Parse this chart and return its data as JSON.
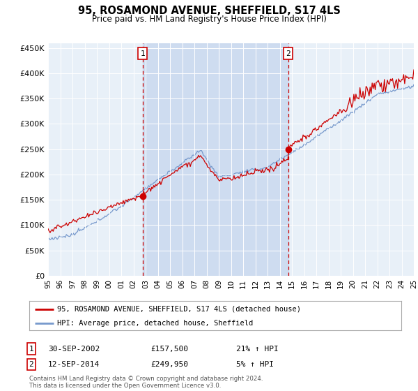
{
  "title": "95, ROSAMOND AVENUE, SHEFFIELD, S17 4LS",
  "subtitle": "Price paid vs. HM Land Registry's House Price Index (HPI)",
  "background_color": "#ffffff",
  "plot_bg_color": "#e8f0f8",
  "shade_color": "#c8d8ee",
  "red_line_color": "#cc0000",
  "blue_line_color": "#7799cc",
  "ylim": [
    0,
    460000
  ],
  "yticks": [
    0,
    50000,
    100000,
    150000,
    200000,
    250000,
    300000,
    350000,
    400000,
    450000
  ],
  "ytick_labels": [
    "£0",
    "£50K",
    "£100K",
    "£150K",
    "£200K",
    "£250K",
    "£300K",
    "£350K",
    "£400K",
    "£450K"
  ],
  "sale1_x": 2002.75,
  "sale1_y": 157500,
  "sale2_x": 2014.7,
  "sale2_y": 249950,
  "sale1_date": "30-SEP-2002",
  "sale1_price": "£157,500",
  "sale1_hpi": "21% ↑ HPI",
  "sale2_date": "12-SEP-2014",
  "sale2_price": "£249,950",
  "sale2_hpi": "5% ↑ HPI",
  "legend_line1": "95, ROSAMOND AVENUE, SHEFFIELD, S17 4LS (detached house)",
  "legend_line2": "HPI: Average price, detached house, Sheffield",
  "footer": "Contains HM Land Registry data © Crown copyright and database right 2024.\nThis data is licensed under the Open Government Licence v3.0.",
  "xmin": 1995,
  "xmax": 2025
}
